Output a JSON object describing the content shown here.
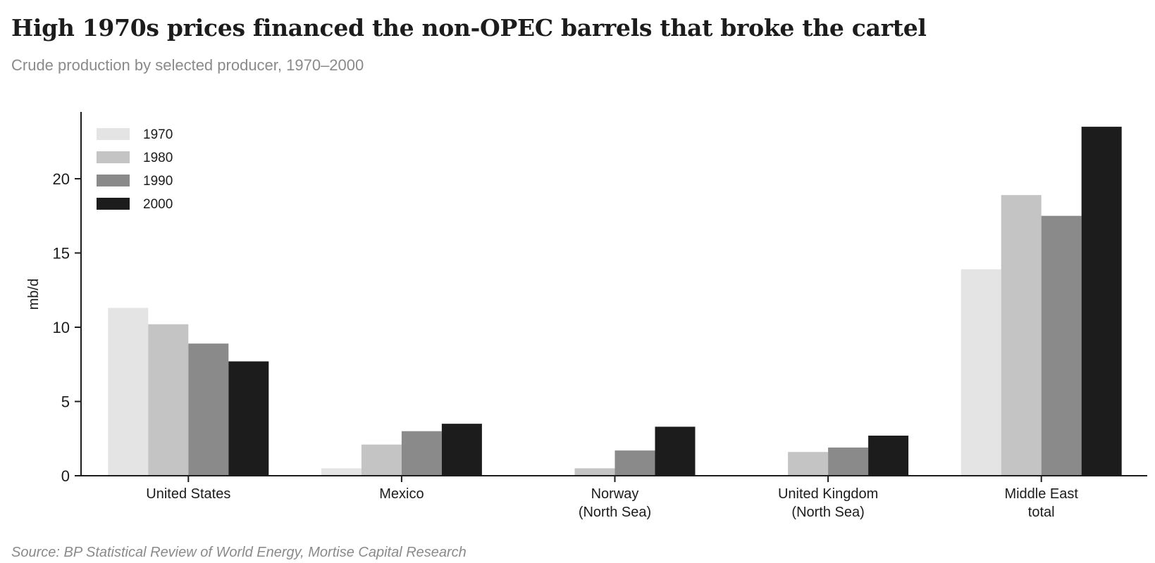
{
  "header": {
    "title": "High 1970s prices financed the non-OPEC barrels that broke the cartel",
    "subtitle": "Crude production by selected producer, 1970–2000"
  },
  "footer": {
    "source": "Source: BP Statistical Review of World Energy, Mortise Capital Research"
  },
  "chart_data": {
    "type": "bar",
    "title": "High 1970s prices financed the non-OPEC barrels that broke the cartel",
    "subtitle": "Crude production by selected producer, 1970–2000",
    "xlabel": "",
    "ylabel": "mb/d",
    "ylim": [
      0,
      24.5
    ],
    "yticks": [
      0,
      5,
      10,
      15,
      20
    ],
    "grid": false,
    "legend_position": "top-left",
    "categories": [
      [
        "United States"
      ],
      [
        "Mexico"
      ],
      [
        "Norway",
        "(North Sea)"
      ],
      [
        "United Kingdom",
        "(North Sea)"
      ],
      [
        "Middle East",
        "total"
      ]
    ],
    "series": [
      {
        "name": "1970",
        "color": "#e4e4e4",
        "values": [
          11.3,
          0.5,
          0.0,
          0.0,
          13.9
        ]
      },
      {
        "name": "1980",
        "color": "#c4c4c4",
        "values": [
          10.2,
          2.1,
          0.5,
          1.6,
          18.9
        ]
      },
      {
        "name": "1990",
        "color": "#8a8a8a",
        "values": [
          8.9,
          3.0,
          1.7,
          1.9,
          17.5
        ]
      },
      {
        "name": "2000",
        "color": "#1c1c1c",
        "values": [
          7.7,
          3.5,
          3.3,
          2.7,
          23.5
        ]
      }
    ]
  }
}
